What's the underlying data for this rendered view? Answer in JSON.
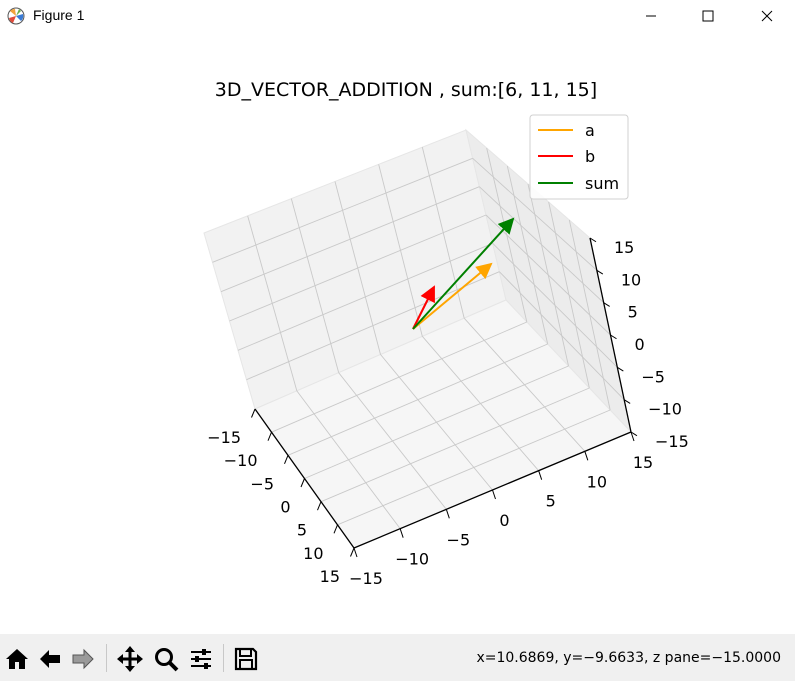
{
  "window": {
    "title": "Figure 1",
    "icon": "matplotlib-icon",
    "controls": [
      "minimize-icon",
      "maximize-icon",
      "close-icon"
    ]
  },
  "toolbar": {
    "buttons": [
      "home-icon",
      "back-icon",
      "forward-icon",
      "pan-icon",
      "zoom-icon",
      "configure-subplots-icon",
      "save-icon"
    ],
    "coords": "x=10.6869, y=−9.6633, z pane=−15.0000"
  },
  "chart_data": {
    "type": "3d-quiver",
    "title": "3D_VECTOR_ADDITION , sum:[6, 11, 15]",
    "xlim": [
      -15,
      15
    ],
    "ylim": [
      -15,
      15
    ],
    "zlim": [
      -15,
      15
    ],
    "x_ticks": [
      "−15",
      "−10",
      "−5",
      "0",
      "5",
      "10",
      "15"
    ],
    "y_ticks": [
      "−15",
      "−10",
      "−5",
      "0",
      "5",
      "10",
      "15"
    ],
    "z_ticks": [
      "15",
      "10",
      "5",
      "0",
      "−5",
      "−10",
      "−15"
    ],
    "grid": true,
    "legend_position": "top-right",
    "legend": [
      {
        "label": "a",
        "color": "#ffa500"
      },
      {
        "label": "b",
        "color": "#ff0000"
      },
      {
        "label": "sum",
        "color": "#008000"
      }
    ],
    "vectors": [
      {
        "name": "a",
        "color": "#ffa500"
      },
      {
        "name": "b",
        "color": "#ff0000"
      },
      {
        "name": "sum",
        "color": "#008000",
        "components": [
          6,
          11,
          15
        ]
      }
    ]
  }
}
